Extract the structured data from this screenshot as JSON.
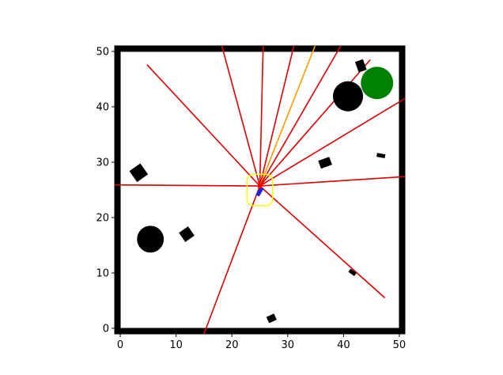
{
  "plot": {
    "x_range": [
      -1,
      51
    ],
    "y_range": [
      -1,
      51
    ],
    "x_ticks": [
      0,
      10,
      20,
      30,
      40,
      50
    ],
    "y_ticks": [
      0,
      10,
      20,
      30,
      40,
      50
    ],
    "x_tick_labels": [
      "0",
      "10",
      "20",
      "30",
      "40",
      "50"
    ],
    "y_tick_labels": [
      "0",
      "10",
      "20",
      "30",
      "40",
      "50"
    ],
    "wall_color": "#000000"
  },
  "robot": {
    "x": 25.0,
    "y": 25.7,
    "heading_deg": -60,
    "color": "#2222cc",
    "ray_origin_color": "#ff0000",
    "footprint": {
      "cx": 25.0,
      "cy": 25.0,
      "half_w": 2.3,
      "half_h": 2.8,
      "corner_r": 1.2,
      "color": "#ffff00"
    }
  },
  "goal": {
    "x": 46.0,
    "y": 44.3,
    "r": 2.9,
    "color": "#008000"
  },
  "obstacles": {
    "circles": [
      {
        "x": 40.8,
        "y": 41.9,
        "r": 2.7
      },
      {
        "x": 5.4,
        "y": 16.1,
        "r": 2.4
      }
    ],
    "rects": [
      {
        "x": 3.3,
        "y": 28.1,
        "w": 2.4,
        "h": 2.4,
        "angle": 35
      },
      {
        "x": 11.9,
        "y": 17.0,
        "w": 2.0,
        "h": 2.0,
        "angle": 35
      },
      {
        "x": 36.7,
        "y": 29.9,
        "w": 2.1,
        "h": 1.5,
        "angle": 20
      },
      {
        "x": 43.1,
        "y": 47.4,
        "w": 1.5,
        "h": 2.0,
        "angle": 20
      },
      {
        "x": 46.7,
        "y": 31.2,
        "w": 1.5,
        "h": 0.7,
        "angle": -10
      },
      {
        "x": 41.6,
        "y": 10.1,
        "w": 1.3,
        "h": 0.7,
        "angle": -35
      },
      {
        "x": 27.1,
        "y": 1.8,
        "w": 1.5,
        "h": 1.2,
        "angle": 25
      }
    ]
  },
  "rays": {
    "origin": [
      25.0,
      25.7
    ],
    "color": "#dd0000",
    "highlight_color": "#ff9900",
    "endpoints": [
      [
        -1,
        25.9
      ],
      [
        4.8,
        47.6
      ],
      [
        18.2,
        51
      ],
      [
        25.6,
        51
      ],
      [
        31.1,
        51
      ],
      [
        34.9,
        51
      ],
      [
        39.5,
        51
      ],
      [
        44.8,
        48.5
      ],
      [
        51,
        41.5
      ],
      [
        51,
        27.4
      ],
      [
        47.4,
        5.5
      ],
      [
        15.0,
        -1
      ]
    ],
    "highlight_index": 5
  }
}
